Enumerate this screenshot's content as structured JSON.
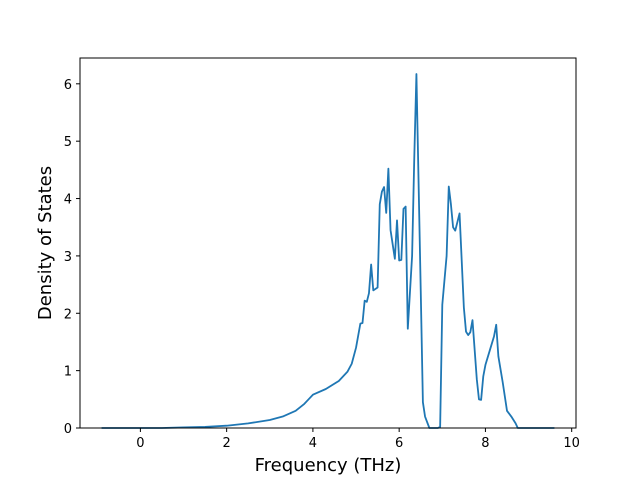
{
  "chart_data": {
    "type": "line",
    "title": "",
    "xlabel": "Frequency (THz)",
    "ylabel": "Density of States",
    "xlim": [
      -1.4,
      10.1
    ],
    "ylim": [
      0,
      6.45
    ],
    "xticks": [
      0,
      2,
      4,
      6,
      8,
      10
    ],
    "yticks": [
      0,
      1,
      2,
      3,
      4,
      5,
      6
    ],
    "grid": false,
    "legend": "none",
    "series": [
      {
        "color": "#1f77b4",
        "x": [
          -0.9,
          -0.5,
          0.0,
          0.5,
          1.0,
          1.5,
          2.0,
          2.5,
          3.0,
          3.3,
          3.6,
          3.8,
          3.9,
          4.0,
          4.3,
          4.6,
          4.8,
          4.9,
          5.0,
          5.1,
          5.15,
          5.2,
          5.25,
          5.3,
          5.35,
          5.4,
          5.5,
          5.55,
          5.6,
          5.65,
          5.7,
          5.75,
          5.8,
          5.9,
          5.95,
          6.0,
          6.05,
          6.1,
          6.15,
          6.2,
          6.3,
          6.35,
          6.4,
          6.5,
          6.55,
          6.6,
          6.7,
          6.9,
          6.95,
          7.0,
          7.1,
          7.15,
          7.2,
          7.25,
          7.3,
          7.4,
          7.5,
          7.55,
          7.6,
          7.65,
          7.7,
          7.8,
          7.85,
          7.9,
          7.95,
          8.0,
          8.1,
          8.2,
          8.25,
          8.3,
          8.4,
          8.5,
          8.6,
          8.7,
          8.75,
          8.8,
          9.0,
          9.3,
          9.6
        ],
        "values": [
          0.0,
          0.0,
          0.0,
          0.0,
          0.01,
          0.02,
          0.04,
          0.08,
          0.14,
          0.2,
          0.3,
          0.42,
          0.5,
          0.58,
          0.68,
          0.82,
          0.98,
          1.12,
          1.4,
          1.82,
          1.83,
          2.22,
          2.2,
          2.35,
          2.85,
          2.4,
          2.45,
          3.9,
          4.12,
          4.2,
          3.75,
          4.52,
          3.45,
          2.95,
          3.62,
          2.92,
          2.93,
          3.82,
          3.86,
          1.73,
          3.0,
          4.7,
          6.17,
          2.4,
          0.45,
          0.2,
          0.0,
          0.0,
          0.02,
          2.15,
          3.0,
          4.21,
          3.9,
          3.5,
          3.44,
          3.74,
          2.1,
          1.68,
          1.62,
          1.67,
          1.88,
          0.85,
          0.5,
          0.49,
          0.9,
          1.1,
          1.35,
          1.6,
          1.8,
          1.25,
          0.8,
          0.3,
          0.2,
          0.08,
          0.0,
          0.0,
          0.0,
          0.0,
          0.0
        ]
      }
    ]
  }
}
